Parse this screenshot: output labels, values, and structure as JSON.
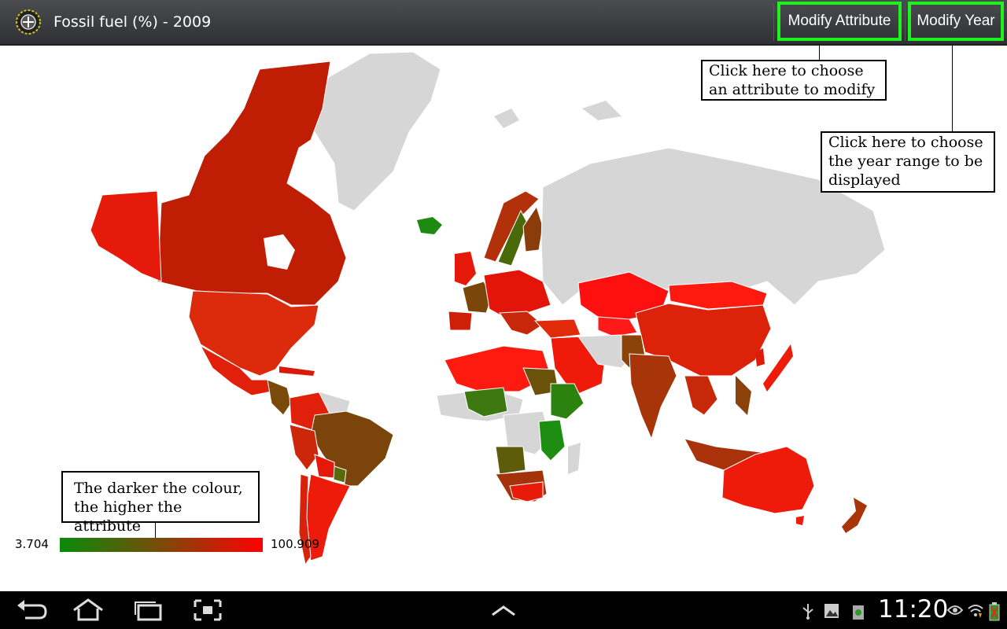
{
  "actionbar": {
    "title": "Fossil fuel (%) - 2009",
    "modify_attribute_label": "Modify Attribute",
    "modify_year_label": "Modify Year"
  },
  "callouts": {
    "attribute_hint": "Click here to choose an attribute to modify",
    "year_hint": "Click here to choose the year range to be displayed",
    "legend_hint": "The darker the colour, the higher the attribute"
  },
  "legend": {
    "min": "3.704",
    "max": "100.909",
    "low_color": "#0a8a0a",
    "mid_color": "#7a4a0a",
    "high_color": "#ff0000"
  },
  "status_bar": {
    "time": "11:20",
    "icons": [
      "usb-icon",
      "gallery-icon",
      "recycle-icon",
      "eye-icon",
      "wifi-icon",
      "battery-icon"
    ]
  },
  "navigation": {
    "icons": [
      "back-icon",
      "home-icon",
      "recent-apps-icon",
      "screenshot-icon",
      "menu-up-icon"
    ]
  }
}
